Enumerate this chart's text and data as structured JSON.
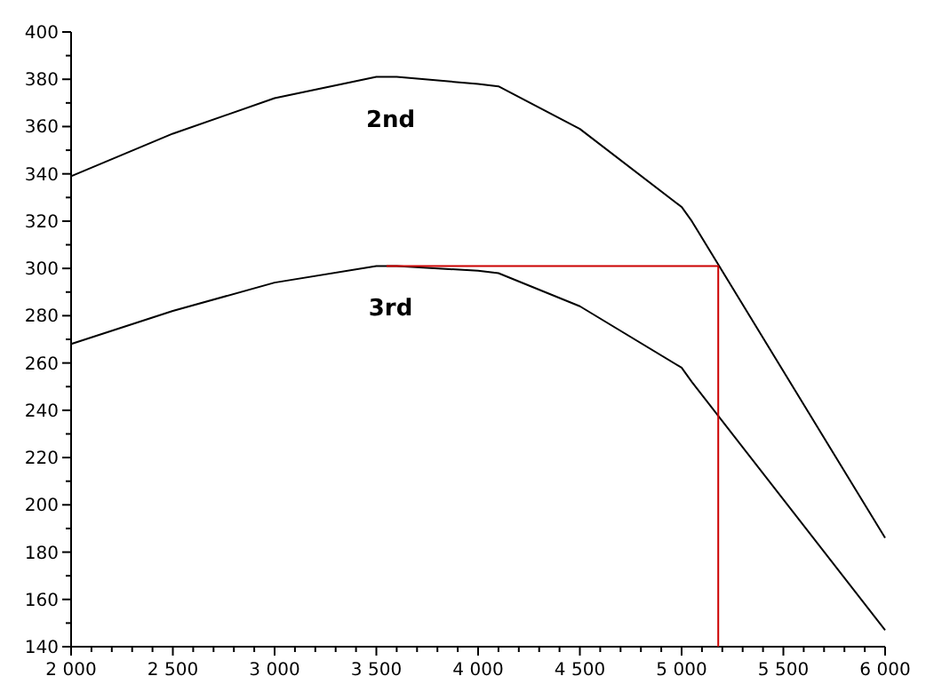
{
  "chart_data": {
    "type": "line",
    "xlim": [
      2000,
      6000
    ],
    "ylim": [
      140,
      400
    ],
    "xticks": [
      {
        "value": 2000,
        "label": "2 000"
      },
      {
        "value": 2100,
        "label": null
      },
      {
        "value": 2200,
        "label": null
      },
      {
        "value": 2300,
        "label": null
      },
      {
        "value": 2400,
        "label": null
      },
      {
        "value": 2500,
        "label": "2 500"
      },
      {
        "value": 2600,
        "label": null
      },
      {
        "value": 2700,
        "label": null
      },
      {
        "value": 2800,
        "label": null
      },
      {
        "value": 2900,
        "label": null
      },
      {
        "value": 3000,
        "label": "3 000"
      },
      {
        "value": 3100,
        "label": null
      },
      {
        "value": 3200,
        "label": null
      },
      {
        "value": 3300,
        "label": null
      },
      {
        "value": 3400,
        "label": null
      },
      {
        "value": 3500,
        "label": "3 500"
      },
      {
        "value": 3600,
        "label": null
      },
      {
        "value": 3700,
        "label": null
      },
      {
        "value": 3800,
        "label": null
      },
      {
        "value": 3900,
        "label": null
      },
      {
        "value": 4000,
        "label": "4 000"
      },
      {
        "value": 4100,
        "label": null
      },
      {
        "value": 4200,
        "label": null
      },
      {
        "value": 4300,
        "label": null
      },
      {
        "value": 4400,
        "label": null
      },
      {
        "value": 4500,
        "label": "4 500"
      },
      {
        "value": 4600,
        "label": null
      },
      {
        "value": 4700,
        "label": null
      },
      {
        "value": 4800,
        "label": null
      },
      {
        "value": 4900,
        "label": null
      },
      {
        "value": 5000,
        "label": "5 000"
      },
      {
        "value": 5100,
        "label": null
      },
      {
        "value": 5200,
        "label": null
      },
      {
        "value": 5300,
        "label": null
      },
      {
        "value": 5400,
        "label": null
      },
      {
        "value": 5500,
        "label": "5 500"
      },
      {
        "value": 5600,
        "label": null
      },
      {
        "value": 5700,
        "label": null
      },
      {
        "value": 5800,
        "label": null
      },
      {
        "value": 5900,
        "label": null
      },
      {
        "value": 6000,
        "label": "6 000"
      }
    ],
    "yticks": [
      140,
      {
        "value": 150,
        "label": null
      },
      160,
      {
        "value": 170,
        "label": null
      },
      180,
      {
        "value": 190,
        "label": null
      },
      200,
      {
        "value": 210,
        "label": null
      },
      220,
      {
        "value": 230,
        "label": null
      },
      240,
      {
        "value": 250,
        "label": null
      },
      260,
      {
        "value": 270,
        "label": null
      },
      280,
      {
        "value": 290,
        "label": null
      },
      300,
      {
        "value": 310,
        "label": null
      },
      320,
      {
        "value": 330,
        "label": null
      },
      340,
      {
        "value": 350,
        "label": null
      },
      360,
      {
        "value": 370,
        "label": null
      },
      380,
      {
        "value": 390,
        "label": null
      },
      400
    ],
    "grid": false,
    "marker": "none",
    "line_style": "solid",
    "series": [
      {
        "name": "2nd",
        "color": "#000000",
        "x": [
          2000,
          2500,
          3000,
          3500,
          3600,
          4000,
          4100,
          4500,
          5000,
          5050,
          6000
        ],
        "values": [
          339,
          357,
          372,
          381,
          381,
          378,
          377,
          359,
          326,
          320,
          186
        ]
      },
      {
        "name": "3rd",
        "color": "#000000",
        "x": [
          2000,
          2500,
          3000,
          3500,
          3600,
          4000,
          4100,
          4500,
          5000,
          5050,
          6000
        ],
        "values": [
          268,
          282,
          294,
          301,
          301,
          299,
          298,
          284,
          258,
          252,
          147
        ]
      },
      {
        "color": "#cc0000",
        "x": [
          3550,
          5180,
          5180
        ],
        "values": [
          301,
          301,
          140
        ]
      }
    ]
  }
}
